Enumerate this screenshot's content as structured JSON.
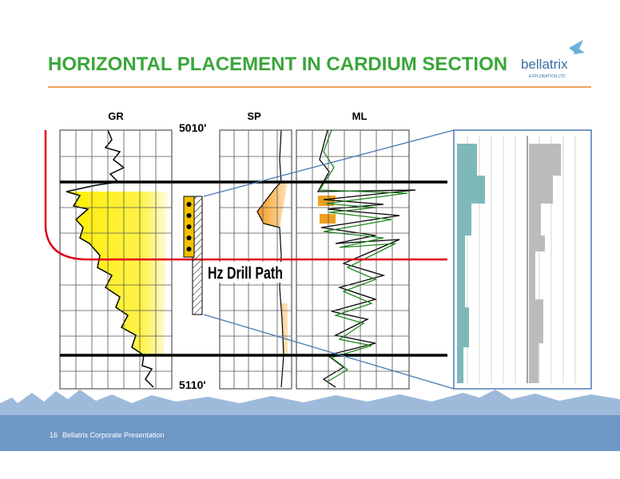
{
  "header": {
    "title": "HORIZONTAL PLACEMENT IN CARDIUM SECTION",
    "logo": "bellatrix",
    "logo_subtitle": "EXPLORATION LTD"
  },
  "tracks": [
    "GR",
    "SP",
    "ML"
  ],
  "depths": {
    "top": "5010'",
    "bottom": "5110'"
  },
  "annotation": "Hz Drill Path",
  "footer": {
    "page": "16",
    "text": "Bellatrix Corporate Presentation"
  }
}
